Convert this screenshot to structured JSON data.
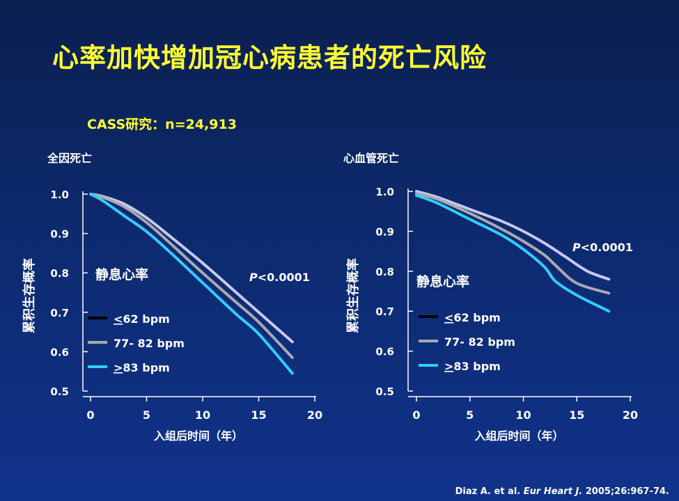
{
  "slide": {
    "title": "心率加快增加冠心病患者的死亡风险",
    "subtitle": "CASS研究：n=24,913",
    "citation": {
      "authors": "Diaz A. et al.",
      "journal": "Eur Heart J.",
      "details": "2005;26:967-74."
    }
  },
  "legend_heading": "静息心率",
  "colors": {
    "<62 bpm": "#c8c8ee",
    "77- 82  bpm": "#a9a9b1",
    ">83 bpm": "#33ccff",
    "legend_<62": "#000000"
  },
  "chart_data": [
    {
      "type": "line",
      "title": "全因死亡",
      "xlabel": "入组后时间（年）",
      "ylabel": "累积生存概率",
      "xlim": [
        0,
        20
      ],
      "ylim": [
        0.5,
        1.0
      ],
      "xticks": [
        "0",
        "5",
        "10",
        "15",
        "20"
      ],
      "yticks": [
        "0.5",
        "0.6",
        "0.7",
        "0.8",
        "0.9",
        "1.0"
      ],
      "annotation": "P<0.0001",
      "legend_labels": [
        "<62 bpm",
        "77- 82  bpm",
        ">83 bpm"
      ],
      "series": [
        {
          "name": "<62 bpm",
          "x": [
            0,
            1,
            3,
            5,
            7,
            10,
            13,
            15,
            18
          ],
          "y": [
            1.0,
            0.995,
            0.975,
            0.94,
            0.895,
            0.825,
            0.75,
            0.7,
            0.625
          ]
        },
        {
          "name": "77- 82  bpm",
          "x": [
            0,
            1,
            3,
            5,
            7,
            10,
            13,
            15,
            18
          ],
          "y": [
            1.0,
            0.993,
            0.968,
            0.928,
            0.878,
            0.8,
            0.725,
            0.675,
            0.585
          ]
        },
        {
          "name": ">83 bpm",
          "x": [
            0,
            1,
            3,
            5,
            7,
            10,
            13,
            15,
            18
          ],
          "y": [
            1.0,
            0.985,
            0.945,
            0.905,
            0.855,
            0.775,
            0.695,
            0.645,
            0.545
          ]
        }
      ]
    },
    {
      "type": "line",
      "title": "心血管死亡",
      "xlabel": "入组后时间（年）",
      "ylabel": "累积生存概率",
      "xlim": [
        0,
        20
      ],
      "ylim": [
        0.5,
        1.0
      ],
      "xticks": [
        "0",
        "5",
        "10",
        "15",
        "20"
      ],
      "yticks": [
        "0.5",
        "0.6",
        "0.7",
        "0.8",
        "0.9",
        "1.0"
      ],
      "annotation": "P<0.0001",
      "legend_labels": [
        "<62 bpm",
        "77- 82  bpm",
        ">83 bpm"
      ],
      "series": [
        {
          "name": "<62 bpm",
          "x": [
            0,
            2,
            5,
            8,
            10,
            12,
            14,
            16,
            18
          ],
          "y": [
            1.0,
            0.985,
            0.955,
            0.925,
            0.9,
            0.87,
            0.835,
            0.8,
            0.78
          ]
        },
        {
          "name": "77- 82  bpm",
          "x": [
            0,
            2,
            5,
            8,
            10,
            12,
            13,
            15,
            18
          ],
          "y": [
            0.995,
            0.98,
            0.945,
            0.905,
            0.875,
            0.84,
            0.815,
            0.77,
            0.745
          ]
        },
        {
          "name": ">83 bpm",
          "x": [
            0,
            2,
            5,
            8,
            10,
            12,
            13,
            15,
            18
          ],
          "y": [
            0.99,
            0.97,
            0.93,
            0.89,
            0.855,
            0.81,
            0.775,
            0.74,
            0.7
          ]
        }
      ]
    }
  ]
}
